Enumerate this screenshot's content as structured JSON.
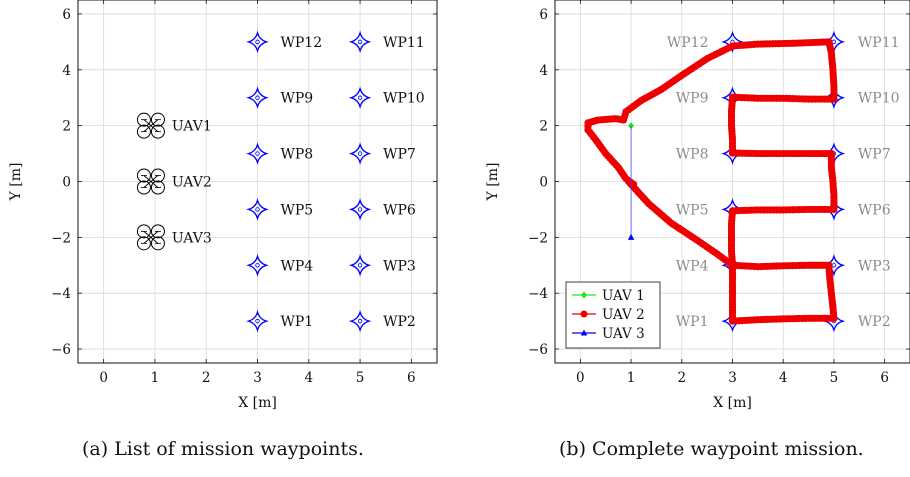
{
  "chart_data": [
    {
      "type": "scatter",
      "xlabel": "X [m]",
      "ylabel": "Y [m]",
      "xlim": [
        -0.5,
        6.5
      ],
      "ylim": [
        -6.5,
        6.5
      ],
      "xticks": [
        0,
        1,
        2,
        3,
        4,
        5,
        6
      ],
      "yticks": [
        -6,
        -4,
        -2,
        0,
        2,
        4,
        6
      ],
      "grid": true,
      "waypoints": [
        {
          "label": "WP12",
          "x": 3,
          "y": 5
        },
        {
          "label": "WP11",
          "x": 5,
          "y": 5
        },
        {
          "label": "WP9",
          "x": 3,
          "y": 3
        },
        {
          "label": "WP10",
          "x": 5,
          "y": 3
        },
        {
          "label": "WP8",
          "x": 3,
          "y": 1
        },
        {
          "label": "WP7",
          "x": 5,
          "y": 1
        },
        {
          "label": "WP5",
          "x": 3,
          "y": -1
        },
        {
          "label": "WP6",
          "x": 5,
          "y": -1
        },
        {
          "label": "WP4",
          "x": 3,
          "y": -3
        },
        {
          "label": "WP3",
          "x": 5,
          "y": -3
        },
        {
          "label": "WP1",
          "x": 3,
          "y": -5
        },
        {
          "label": "WP2",
          "x": 5,
          "y": -5
        }
      ],
      "uavs": [
        {
          "label": "UAV1",
          "x": 1,
          "y": 2
        },
        {
          "label": "UAV2",
          "x": 1,
          "y": 0
        },
        {
          "label": "UAV3",
          "x": 1,
          "y": -2
        }
      ],
      "waypoint_color": "#0000ff",
      "uav_color": "#000000"
    },
    {
      "type": "line",
      "xlabel": "X [m]",
      "ylabel": "Y [m]",
      "xlim": [
        -0.5,
        6.5
      ],
      "ylim": [
        -6.5,
        6.5
      ],
      "xticks": [
        0,
        1,
        2,
        3,
        4,
        5,
        6
      ],
      "yticks": [
        -6,
        -4,
        -2,
        0,
        2,
        4,
        6
      ],
      "grid": true,
      "legend_position": "bottom-left",
      "waypoints": [
        {
          "label": "WP12",
          "x": 3,
          "y": 5
        },
        {
          "label": "WP11",
          "x": 5,
          "y": 5
        },
        {
          "label": "WP9",
          "x": 3,
          "y": 3
        },
        {
          "label": "WP10",
          "x": 5,
          "y": 3
        },
        {
          "label": "WP8",
          "x": 3,
          "y": 1
        },
        {
          "label": "WP7",
          "x": 5,
          "y": 1
        },
        {
          "label": "WP5",
          "x": 3,
          "y": -1
        },
        {
          "label": "WP6",
          "x": 5,
          "y": -1
        },
        {
          "label": "WP4",
          "x": 3,
          "y": -3
        },
        {
          "label": "WP3",
          "x": 5,
          "y": -3
        },
        {
          "label": "WP1",
          "x": 3,
          "y": -5
        },
        {
          "label": "WP2",
          "x": 5,
          "y": -5
        }
      ],
      "waypoint_color": "#0000ff",
      "waypoint_label_color": "#8c8c8c",
      "series": [
        {
          "name": "UAV 1",
          "color": "#1ee61e",
          "marker": "diamond",
          "points": [
            [
              1,
              2
            ]
          ]
        },
        {
          "name": "UAV 2",
          "color": "#ee0000",
          "marker": "circle",
          "points": [
            [
              0.95,
              0.0
            ],
            [
              1.05,
              -0.1
            ],
            [
              0.9,
              0.1
            ],
            [
              0.75,
              0.5
            ],
            [
              0.5,
              1.0
            ],
            [
              0.3,
              1.5
            ],
            [
              0.15,
              1.85
            ],
            [
              0.15,
              2.1
            ],
            [
              0.35,
              2.2
            ],
            [
              0.7,
              2.25
            ],
            [
              0.85,
              2.2
            ],
            [
              0.9,
              2.5
            ],
            [
              1.2,
              2.9
            ],
            [
              1.6,
              3.3
            ],
            [
              2.0,
              3.8
            ],
            [
              2.5,
              4.4
            ],
            [
              3.0,
              4.85
            ],
            [
              3.5,
              4.92
            ],
            [
              4.2,
              4.95
            ],
            [
              4.9,
              5.0
            ],
            [
              4.95,
              4.6
            ],
            [
              4.98,
              4.0
            ],
            [
              5.0,
              3.4
            ],
            [
              5.0,
              2.95
            ],
            [
              4.5,
              2.95
            ],
            [
              4.0,
              2.98
            ],
            [
              3.5,
              2.98
            ],
            [
              3.0,
              3.02
            ],
            [
              2.98,
              2.5
            ],
            [
              2.98,
              2.0
            ],
            [
              3.0,
              1.5
            ],
            [
              3.0,
              1.02
            ],
            [
              3.5,
              1.0
            ],
            [
              4.0,
              1.0
            ],
            [
              4.5,
              1.0
            ],
            [
              4.95,
              1.0
            ],
            [
              4.95,
              0.5
            ],
            [
              4.98,
              0.0
            ],
            [
              5.0,
              -0.5
            ],
            [
              5.0,
              -1.0
            ],
            [
              4.5,
              -1.0
            ],
            [
              4.0,
              -1.02
            ],
            [
              3.5,
              -1.02
            ],
            [
              3.0,
              -1.05
            ],
            [
              2.98,
              -1.5
            ],
            [
              2.98,
              -2.0
            ],
            [
              2.98,
              -2.5
            ],
            [
              3.0,
              -3.0
            ],
            [
              3.5,
              -3.05
            ],
            [
              4.0,
              -3.02
            ],
            [
              4.5,
              -3.0
            ],
            [
              4.9,
              -3.0
            ],
            [
              4.92,
              -3.5
            ],
            [
              4.95,
              -4.0
            ],
            [
              4.98,
              -4.5
            ],
            [
              5.0,
              -4.9
            ],
            [
              4.5,
              -4.9
            ],
            [
              4.0,
              -4.92
            ],
            [
              3.5,
              -4.95
            ],
            [
              3.0,
              -5.0
            ],
            [
              3.0,
              -4.5
            ],
            [
              3.0,
              -4.0
            ],
            [
              3.0,
              -3.5
            ],
            [
              3.0,
              -3.0
            ],
            [
              2.7,
              -2.6
            ],
            [
              2.3,
              -2.1
            ],
            [
              1.8,
              -1.5
            ],
            [
              1.35,
              -0.8
            ],
            [
              1.05,
              -0.2
            ],
            [
              0.95,
              0.0
            ]
          ]
        },
        {
          "name": "UAV 3",
          "color": "#0000ff",
          "marker": "triangle",
          "points": [
            [
              1,
              -2
            ]
          ]
        }
      ],
      "uav2_path": [
        [
          0.95,
          0.0
        ],
        [
          1.05,
          -0.1
        ],
        [
          0.9,
          0.1
        ],
        [
          0.75,
          0.5
        ],
        [
          0.5,
          1.0
        ],
        [
          0.3,
          1.5
        ],
        [
          0.15,
          1.85
        ],
        [
          0.15,
          2.1
        ],
        [
          0.35,
          2.2
        ],
        [
          0.7,
          2.25
        ],
        [
          0.85,
          2.2
        ],
        [
          0.9,
          2.5
        ],
        [
          1.2,
          2.9
        ],
        [
          1.6,
          3.3
        ],
        [
          2.0,
          3.8
        ],
        [
          2.5,
          4.4
        ],
        [
          3.0,
          4.85
        ],
        [
          3.5,
          4.92
        ],
        [
          4.2,
          4.95
        ],
        [
          4.9,
          5.0
        ],
        [
          4.95,
          4.6
        ],
        [
          4.98,
          4.0
        ],
        [
          5.0,
          3.4
        ],
        [
          5.0,
          2.95
        ],
        [
          4.5,
          2.95
        ],
        [
          4.0,
          2.98
        ],
        [
          3.5,
          2.98
        ],
        [
          3.0,
          3.02
        ],
        [
          2.98,
          2.5
        ],
        [
          2.98,
          2.0
        ],
        [
          3.0,
          1.5
        ],
        [
          3.0,
          1.02
        ],
        [
          3.5,
          1.0
        ],
        [
          4.0,
          1.0
        ],
        [
          4.5,
          1.0
        ],
        [
          4.95,
          1.0
        ],
        [
          4.95,
          0.5
        ],
        [
          4.98,
          0.0
        ],
        [
          5.0,
          -0.5
        ],
        [
          5.0,
          -1.0
        ],
        [
          4.5,
          -1.0
        ],
        [
          4.0,
          -1.02
        ],
        [
          3.5,
          -1.02
        ],
        [
          3.0,
          -1.05
        ],
        [
          2.98,
          -1.5
        ],
        [
          2.98,
          -2.0
        ],
        [
          2.98,
          -2.5
        ],
        [
          3.0,
          -3.0
        ],
        [
          3.5,
          -3.05
        ],
        [
          4.0,
          -3.02
        ],
        [
          4.5,
          -3.0
        ],
        [
          4.9,
          -3.0
        ],
        [
          4.92,
          -3.5
        ],
        [
          4.95,
          -4.0
        ],
        [
          4.98,
          -4.5
        ],
        [
          5.0,
          -4.9
        ],
        [
          4.5,
          -4.9
        ],
        [
          4.0,
          -4.92
        ],
        [
          3.5,
          -4.95
        ],
        [
          3.0,
          -5.0
        ],
        [
          3.0,
          -4.5
        ],
        [
          3.0,
          -4.0
        ],
        [
          3.0,
          -3.5
        ],
        [
          3.0,
          -3.0
        ],
        [
          2.7,
          -2.6
        ],
        [
          2.3,
          -2.1
        ],
        [
          1.8,
          -1.5
        ],
        [
          1.35,
          -0.8
        ],
        [
          1.05,
          -0.2
        ],
        [
          0.95,
          0.0
        ]
      ]
    }
  ],
  "captions": {
    "a": "(a) List of mission waypoints.",
    "b": "(b) Complete waypoint mission."
  }
}
